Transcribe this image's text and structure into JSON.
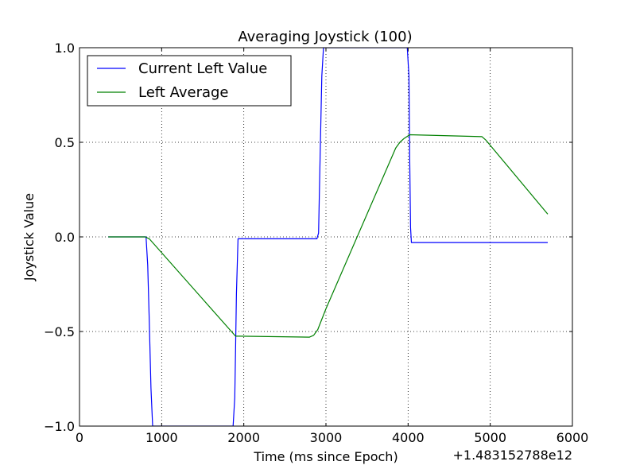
{
  "chart_data": {
    "type": "line",
    "title": "Averaging Joystick (100)",
    "xlabel": "Time (ms since Epoch)",
    "ylabel": "Joystick Value",
    "x_offset_label": "+1.483152788e12",
    "xlim": [
      0,
      6000
    ],
    "ylim": [
      -1.0,
      1.0
    ],
    "x_ticks": [
      0,
      1000,
      2000,
      3000,
      4000,
      5000,
      6000
    ],
    "x_tick_labels": [
      "0",
      "1000",
      "2000",
      "3000",
      "4000",
      "5000",
      "6000"
    ],
    "y_ticks": [
      -1.0,
      -0.5,
      0.0,
      0.5,
      1.0
    ],
    "y_tick_labels": [
      "−1.0",
      "−0.5",
      "0.0",
      "0.5",
      "1.0"
    ],
    "grid": true,
    "legend_position": "top-left",
    "series": [
      {
        "name": "Current Left Value",
        "color": "#0000ff",
        "x": [
          350,
          810,
          830,
          850,
          870,
          890,
          1870,
          1890,
          1900,
          1910,
          1930,
          2890,
          2910,
          2930,
          2950,
          2970,
          2990,
          3990,
          4010,
          4020,
          4030,
          4040,
          5700
        ],
        "y": [
          0.0,
          0.0,
          -0.15,
          -0.45,
          -0.8,
          -1.0,
          -1.0,
          -0.85,
          -0.6,
          -0.3,
          -0.01,
          -0.01,
          0.02,
          0.45,
          0.85,
          1.0,
          1.0,
          1.0,
          0.85,
          0.4,
          0.05,
          -0.03,
          -0.03
        ]
      },
      {
        "name": "Left Average",
        "color": "#008000",
        "x": [
          350,
          800,
          850,
          1870,
          1900,
          1950,
          2800,
          2850,
          2900,
          3000,
          3850,
          3900,
          3950,
          4020,
          4900,
          4950,
          5700
        ],
        "y": [
          0.0,
          0.0,
          -0.01,
          -0.51,
          -0.525,
          -0.525,
          -0.53,
          -0.52,
          -0.49,
          -0.38,
          0.47,
          0.5,
          0.52,
          0.54,
          0.53,
          0.51,
          0.12
        ]
      }
    ]
  }
}
